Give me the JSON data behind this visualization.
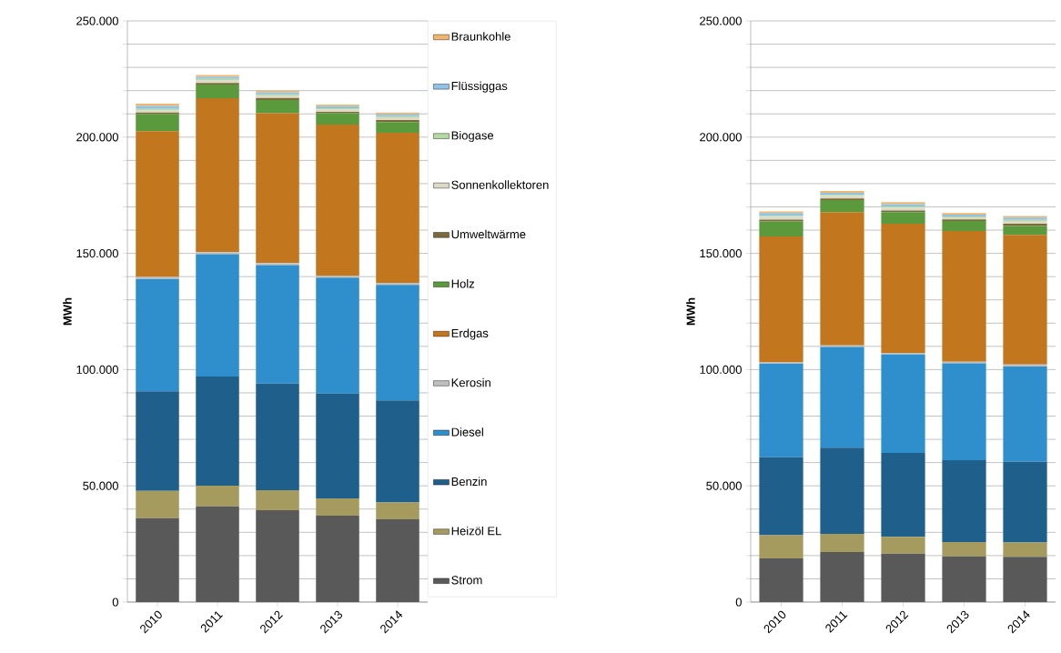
{
  "chart_data": [
    {
      "type": "bar",
      "stacked": true,
      "ylabel": "MWh",
      "grid": "y",
      "legend": "right",
      "categories": [
        "2010",
        "2011",
        "2012",
        "2013",
        "2014"
      ],
      "ylim": [
        0,
        250000
      ],
      "yticks": [
        0,
        {
          "value": 10000,
          "label": null
        },
        {
          "value": 20000,
          "label": null
        },
        {
          "value": 30000,
          "label": null
        },
        {
          "value": 40000,
          "label": null
        },
        {
          "value": 50000,
          "label": "50.000"
        },
        {
          "value": 60000,
          "label": null
        },
        {
          "value": 70000,
          "label": null
        },
        {
          "value": 80000,
          "label": null
        },
        {
          "value": 90000,
          "label": null
        },
        {
          "value": 100000,
          "label": "100.000"
        },
        {
          "value": 110000,
          "label": null
        },
        {
          "value": 120000,
          "label": null
        },
        {
          "value": 130000,
          "label": null
        },
        {
          "value": 140000,
          "label": null
        },
        {
          "value": 150000,
          "label": "150.000"
        },
        {
          "value": 160000,
          "label": null
        },
        {
          "value": 170000,
          "label": null
        },
        {
          "value": 180000,
          "label": null
        },
        {
          "value": 190000,
          "label": null
        },
        {
          "value": 200000,
          "label": "200.000"
        },
        {
          "value": 210000,
          "label": null
        },
        {
          "value": 220000,
          "label": null
        },
        {
          "value": 230000,
          "label": null
        },
        {
          "value": 240000,
          "label": null
        },
        {
          "value": 250000,
          "label": "250.000"
        }
      ],
      "series": [
        {
          "name": "Strom",
          "color": "#595959",
          "values": [
            36100,
            41200,
            39500,
            37200,
            35600
          ]
        },
        {
          "name": "Heizöl EL",
          "color": "#a59b5f",
          "values": [
            11700,
            8900,
            8600,
            7400,
            7200
          ]
        },
        {
          "name": "Benzin",
          "color": "#1f5f8b",
          "values": [
            42900,
            46900,
            45900,
            45100,
            44000
          ]
        },
        {
          "name": "Diesel",
          "color": "#2e8fcc",
          "values": [
            48300,
            52600,
            51000,
            49900,
            49600
          ]
        },
        {
          "name": "Kerosin",
          "color": "#bfbfbf",
          "values": [
            900,
            900,
            800,
            700,
            900
          ]
        },
        {
          "name": "Erdgas",
          "color": "#c2761e",
          "values": [
            62700,
            66200,
            64500,
            65100,
            64600
          ]
        },
        {
          "name": "Holz",
          "color": "#5a9a3d",
          "values": [
            7300,
            5900,
            5700,
            4900,
            4600
          ]
        },
        {
          "name": "Umweltwärme",
          "color": "#7b6b3a",
          "values": [
            700,
            700,
            800,
            600,
            900
          ]
        },
        {
          "name": "Sonnenkollektoren",
          "color": "#ddd9c4",
          "values": [
            1000,
            1200,
            1000,
            1000,
            1100
          ]
        },
        {
          "name": "Biogase",
          "color": "#b3dba0",
          "values": [
            500,
            600,
            600,
            500,
            500
          ]
        },
        {
          "name": "Flüssiggas",
          "color": "#8fc3e5",
          "values": [
            1300,
            800,
            900,
            900,
            900
          ]
        },
        {
          "name": "Braunkohle",
          "color": "#f0b66f",
          "values": [
            1000,
            800,
            800,
            700,
            700
          ]
        }
      ]
    },
    {
      "type": "bar",
      "stacked": true,
      "ylabel": "MWh",
      "grid": "y",
      "categories": [
        "2010",
        "2011",
        "2012",
        "2013",
        "2014"
      ],
      "ylim": [
        0,
        250000
      ],
      "yticks": [
        0,
        {
          "value": 10000,
          "label": null
        },
        {
          "value": 20000,
          "label": null
        },
        {
          "value": 30000,
          "label": null
        },
        {
          "value": 40000,
          "label": null
        },
        {
          "value": 50000,
          "label": "50.000"
        },
        {
          "value": 60000,
          "label": null
        },
        {
          "value": 70000,
          "label": null
        },
        {
          "value": 80000,
          "label": null
        },
        {
          "value": 90000,
          "label": null
        },
        {
          "value": 100000,
          "label": "100.000"
        },
        {
          "value": 110000,
          "label": null
        },
        {
          "value": 120000,
          "label": null
        },
        {
          "value": 130000,
          "label": null
        },
        {
          "value": 140000,
          "label": null
        },
        {
          "value": 150000,
          "label": "150.000"
        },
        {
          "value": 160000,
          "label": null
        },
        {
          "value": 170000,
          "label": null
        },
        {
          "value": 180000,
          "label": null
        },
        {
          "value": 190000,
          "label": null
        },
        {
          "value": 200000,
          "label": "200.000"
        },
        {
          "value": 210000,
          "label": null
        },
        {
          "value": 220000,
          "label": null
        },
        {
          "value": 230000,
          "label": null
        },
        {
          "value": 240000,
          "label": null
        },
        {
          "value": 250000,
          "label": "250.000"
        }
      ],
      "series": [
        {
          "color": "#595959",
          "values": [
            18800,
            21500,
            20800,
            19700,
            19500
          ]
        },
        {
          "color": "#a59b5f",
          "values": [
            10000,
            7800,
            7300,
            6100,
            6100
          ]
        },
        {
          "color": "#1f5f8b",
          "values": [
            33500,
            37100,
            36100,
            35200,
            34700
          ]
        },
        {
          "color": "#2e8fcc",
          "values": [
            40200,
            43300,
            42300,
            41700,
            41000
          ]
        },
        {
          "color": "#bfbfbf",
          "values": [
            800,
            700,
            700,
            700,
            900
          ]
        },
        {
          "color": "#c2761e",
          "values": [
            54000,
            57300,
            55600,
            56200,
            55800
          ]
        },
        {
          "color": "#5a9a3d",
          "values": [
            6400,
            5200,
            4900,
            4300,
            3800
          ]
        },
        {
          "color": "#7b6b3a",
          "values": [
            800,
            700,
            700,
            700,
            1000
          ]
        },
        {
          "color": "#ddd9c4",
          "values": [
            1200,
            1100,
            1200,
            900,
            1100
          ]
        },
        {
          "color": "#b3dba0",
          "values": [
            500,
            500,
            600,
            400,
            500
          ]
        },
        {
          "color": "#8fc3e5",
          "values": [
            1100,
            900,
            1000,
            800,
            1000
          ]
        },
        {
          "color": "#f0b66f",
          "values": [
            700,
            700,
            800,
            600,
            700
          ]
        }
      ]
    }
  ]
}
